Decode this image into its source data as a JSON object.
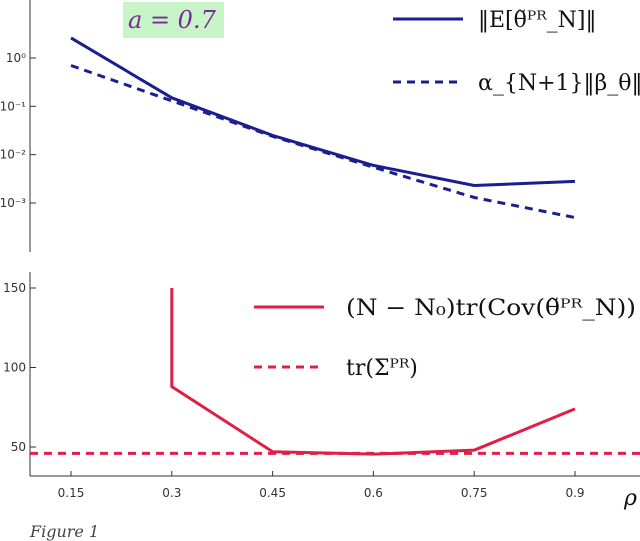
{
  "chart_data": [
    {
      "type": "line",
      "yscale": "log",
      "x": [
        0.15,
        0.3,
        0.45,
        0.6,
        0.75,
        0.9
      ],
      "xlim": [
        0.1,
        0.95
      ],
      "ylim": [
        3e-05,
        10
      ],
      "ytick_labels": [
        "10⁰",
        "10⁻¹",
        "10⁻²",
        "10⁻³"
      ],
      "ytick_values": [
        1,
        0.1,
        0.01,
        0.001
      ],
      "annotation": "a = 0.7",
      "annotation_bg": "#c8f5c8",
      "legend_position": "top-right",
      "series": [
        {
          "name": "‖E[θ̃ᴾᴿ_N]‖",
          "values": [
            2.6,
            0.15,
            0.025,
            0.006,
            0.0023,
            0.0028
          ],
          "color": "#1a1f8f",
          "style": "solid"
        },
        {
          "name": "α_{N+1}‖β_θ‖",
          "values": [
            0.7,
            0.13,
            0.024,
            0.0055,
            0.0013,
            0.0005
          ],
          "color": "#1a1f8f",
          "style": "dashed"
        }
      ]
    },
    {
      "type": "line",
      "yscale": "linear",
      "x": [
        0.15,
        0.3,
        0.45,
        0.6,
        0.75,
        0.9
      ],
      "xticks": [
        0.15,
        0.3,
        0.45,
        0.6,
        0.75,
        0.9
      ],
      "xtick_labels": [
        "0.15",
        "0.3",
        "0.45",
        "0.6",
        "0.75",
        "0.9"
      ],
      "xlabel": "ρ",
      "ylim": [
        30,
        155
      ],
      "yticks": [
        50,
        100,
        150
      ],
      "ytick_labels": [
        "50",
        "100",
        "150"
      ],
      "legend_position": "top-right",
      "series": [
        {
          "name": "(N − N₀)tr(Cov(θ̃ᴾᴿ_N))",
          "points": [
            [
              0.3,
              150
            ],
            [
              0.3,
              88
            ],
            [
              0.45,
              47
            ],
            [
              0.6,
              45.5
            ],
            [
              0.75,
              48
            ],
            [
              0.9,
              74
            ]
          ],
          "color": "#e01e46",
          "style": "solid"
        },
        {
          "name": "tr(Σᴾᴿ)",
          "constant": 46,
          "color": "#e01e46",
          "style": "dashed"
        }
      ]
    }
  ],
  "caption": "Figure 1"
}
